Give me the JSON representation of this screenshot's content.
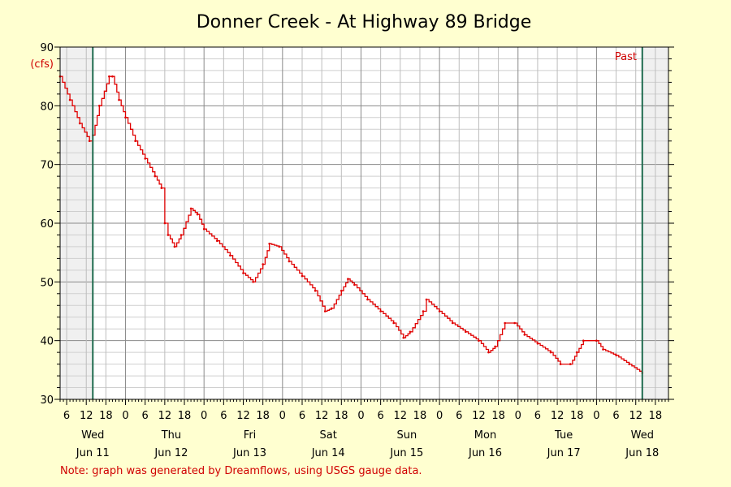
{
  "chart_data": {
    "type": "line",
    "title": "Donner Creek - At Highway 89 Bridge",
    "y_unit": "(cfs)",
    "ylim": [
      30,
      90
    ],
    "yticks": [
      "30",
      "40",
      "50",
      "60",
      "70",
      "80",
      "90"
    ],
    "x_hour_ticks": [
      "6",
      "12",
      "18",
      "0",
      "6",
      "12",
      "18",
      "0",
      "6",
      "12",
      "18",
      "0",
      "6",
      "12",
      "18",
      "0",
      "6",
      "12",
      "18",
      "0",
      "6",
      "12",
      "18",
      "0",
      "6",
      "12",
      "18",
      "0",
      "6",
      "12",
      "18",
      "0",
      "6",
      "12",
      "18"
    ],
    "day_labels": [
      {
        "day": "Wed",
        "date": "Jun 11"
      },
      {
        "day": "Thu",
        "date": "Jun 12"
      },
      {
        "day": "Fri",
        "date": "Jun 13"
      },
      {
        "day": "Sat",
        "date": "Jun 14"
      },
      {
        "day": "Sun",
        "date": "Jun 15"
      },
      {
        "day": "Mon",
        "date": "Jun 16"
      },
      {
        "day": "Tue",
        "date": "Jun 17"
      },
      {
        "day": "Wed",
        "date": "Jun 18"
      }
    ],
    "x_start": "Jun 11 04:00",
    "x_end": "Jun 18 22:00",
    "past_window": {
      "start": "Jun 11 14:00",
      "end": "Jun 18 14:00"
    },
    "past_label": "Past",
    "grid": true,
    "series": [
      {
        "color": "#e00000",
        "x": [
          "Jun 11 04:00",
          "Jun 11 07:00",
          "Jun 11 10:00",
          "Jun 11 13:00",
          "Jun 11 14:00",
          "Jun 11 16:00",
          "Jun 11 19:00",
          "Jun 11 20:00",
          "Jun 11 22:00",
          "Jun 12 00:00",
          "Jun 12 03:00",
          "Jun 12 06:00",
          "Jun 12 09:00",
          "Jun 12 11:00",
          "Jun 12 12:00",
          "Jun 12 13:00",
          "Jun 12 15:00",
          "Jun 12 17:00",
          "Jun 12 20:00",
          "Jun 12 22:00",
          "Jun 13 00:00",
          "Jun 13 04:00",
          "Jun 13 08:00",
          "Jun 13 12:00",
          "Jun 13 15:00",
          "Jun 13 18:00",
          "Jun 13 20:00",
          "Jun 13 23:00",
          "Jun 14 02:00",
          "Jun 14 06:00",
          "Jun 14 10:00",
          "Jun 14 13:00",
          "Jun 14 15:00",
          "Jun 14 18:00",
          "Jun 14 20:00",
          "Jun 14 22:00",
          "Jun 15 02:00",
          "Jun 15 06:00",
          "Jun 15 10:00",
          "Jun 15 13:00",
          "Jun 15 15:00",
          "Jun 15 19:00",
          "Jun 15 20:00",
          "Jun 16 00:00",
          "Jun 16 04:00",
          "Jun 16 08:00",
          "Jun 16 12:00",
          "Jun 16 15:00",
          "Jun 16 17:00",
          "Jun 16 20:00",
          "Jun 16 23:00",
          "Jun 17 02:00",
          "Jun 17 06:00",
          "Jun 17 10:00",
          "Jun 17 13:00",
          "Jun 17 16:00",
          "Jun 17 18:00",
          "Jun 17 20:00",
          "Jun 18 00:00",
          "Jun 18 02:00",
          "Jun 18 06:00",
          "Jun 18 10:00",
          "Jun 18 14:00"
        ],
        "y": [
          85,
          81,
          77,
          74,
          75,
          80,
          85,
          85,
          81,
          78,
          74,
          71,
          68,
          66,
          60,
          58,
          56,
          58,
          62.5,
          61.5,
          59,
          57,
          54.5,
          51.5,
          50,
          53,
          56.5,
          56,
          53.5,
          51,
          48.5,
          45,
          45.5,
          48.5,
          50.5,
          49.5,
          47,
          45,
          43,
          40.5,
          41.5,
          45,
          47,
          45,
          43,
          41.5,
          40,
          38,
          39,
          43,
          43,
          41,
          39.5,
          38,
          36,
          36,
          38,
          40,
          40,
          38.5,
          37.5,
          36,
          34.5
        ]
      }
    ]
  },
  "note": "Note: graph was generated by Dreamflows, using USGS gauge data."
}
